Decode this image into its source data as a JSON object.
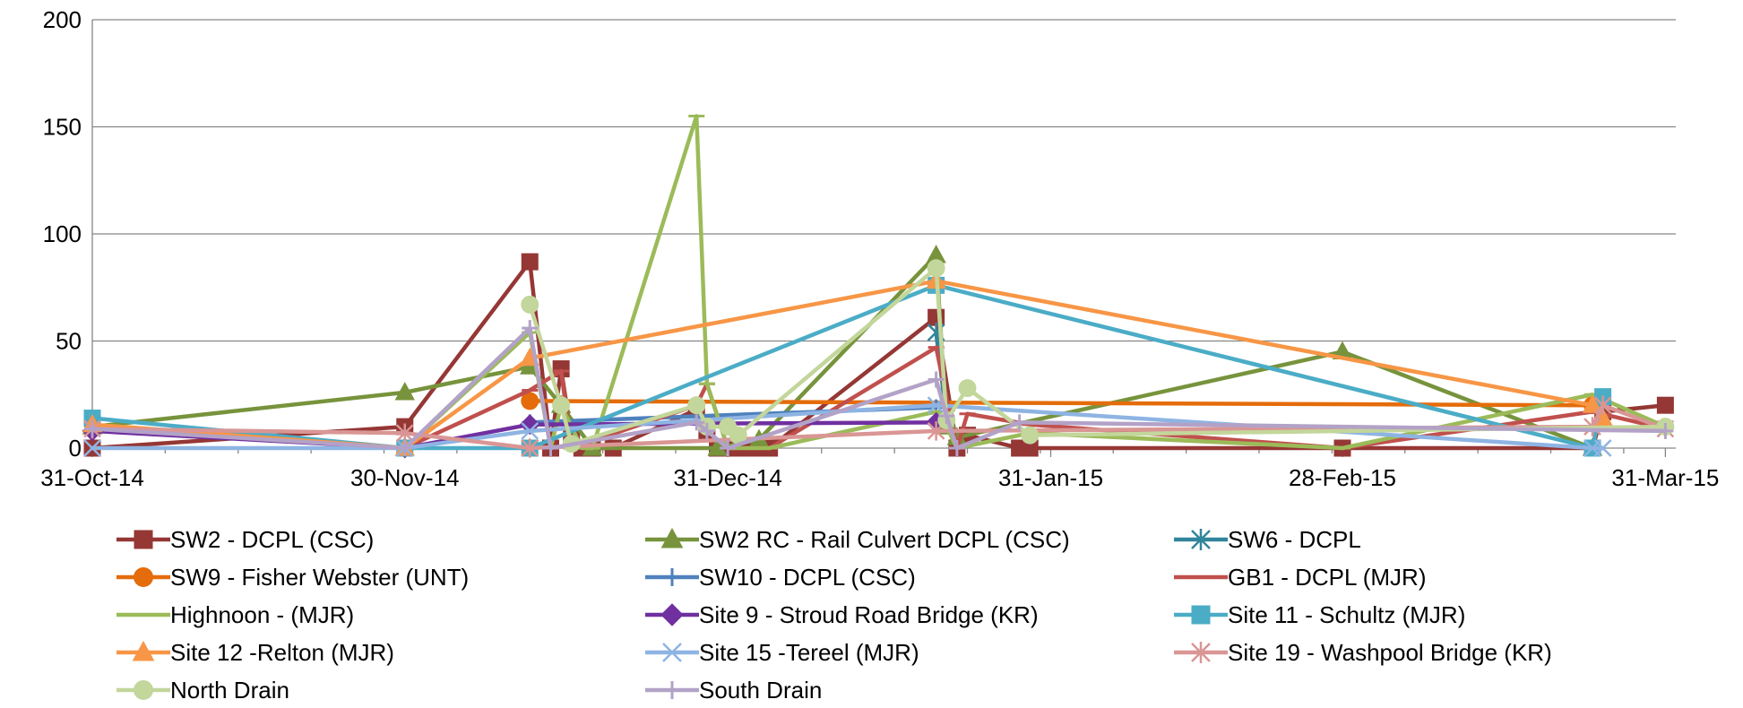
{
  "chart_data": {
    "type": "line",
    "title": "",
    "xlabel": "",
    "ylabel": "",
    "ylim": [
      0,
      200
    ],
    "yticks": [
      0,
      50,
      100,
      150,
      200
    ],
    "xlim": [
      "2014-10-31",
      "2015-04-01"
    ],
    "xticks": [
      {
        "date": "2014-10-31",
        "label": "31-Oct-14"
      },
      {
        "date": "2014-11-30",
        "label": "30-Nov-14"
      },
      {
        "date": "2014-12-31",
        "label": "31-Dec-14"
      },
      {
        "date": "2015-01-31",
        "label": "31-Jan-15"
      },
      {
        "date": "2015-02-28",
        "label": "28-Feb-15"
      },
      {
        "date": "2015-03-31",
        "label": "31-Mar-15"
      }
    ],
    "grid": "horizontal",
    "legend_position": "bottom",
    "series": [
      {
        "name": "SW2 - DCPL (CSC)",
        "color": "#953735",
        "marker": "square",
        "points": [
          [
            "2014-10-31",
            0
          ],
          [
            "2014-11-30",
            10
          ],
          [
            "2014-12-12",
            87
          ],
          [
            "2014-12-14",
            0
          ],
          [
            "2014-12-15",
            37
          ],
          [
            "2014-12-16",
            5
          ],
          [
            "2014-12-17",
            0
          ],
          [
            "2014-12-18",
            0
          ],
          [
            "2014-12-20",
            0
          ],
          [
            "2014-12-28",
            18
          ],
          [
            "2014-12-29",
            7
          ],
          [
            "2014-12-30",
            0
          ],
          [
            "2014-12-31",
            0
          ],
          [
            "2015-01-01",
            0
          ],
          [
            "2015-01-02",
            0
          ],
          [
            "2015-01-03",
            0
          ],
          [
            "2015-01-04",
            0
          ],
          [
            "2015-01-20",
            61
          ],
          [
            "2015-01-22",
            0
          ],
          [
            "2015-01-23",
            6
          ],
          [
            "2015-01-28",
            0
          ],
          [
            "2015-01-29",
            0
          ],
          [
            "2015-02-28",
            0
          ],
          [
            "2015-03-24",
            0
          ],
          [
            "2015-03-25",
            17
          ],
          [
            "2015-03-31",
            20
          ]
        ]
      },
      {
        "name": "SW2 RC - Rail Culvert DCPL (CSC)",
        "color": "#77933C",
        "marker": "triangle",
        "points": [
          [
            "2014-10-31",
            10
          ],
          [
            "2014-11-30",
            26
          ],
          [
            "2014-12-12",
            38
          ],
          [
            "2014-12-15",
            20
          ],
          [
            "2014-12-18",
            0
          ],
          [
            "2014-12-30",
            0
          ],
          [
            "2015-01-03",
            4
          ],
          [
            "2015-01-20",
            90
          ],
          [
            "2015-01-21",
            10
          ],
          [
            "2015-01-22",
            5
          ],
          [
            "2015-02-28",
            45
          ],
          [
            "2015-03-24",
            0
          ]
        ]
      },
      {
        "name": "SW6 - DCPL",
        "color": "#31859C",
        "marker": "star",
        "points": [
          [
            "2015-01-20",
            54
          ],
          [
            "2015-01-21",
            14
          ]
        ]
      },
      {
        "name": "SW9 - Fisher Webster (UNT)",
        "color": "#E46C0A",
        "marker": "circle",
        "points": [
          [
            "2014-12-12",
            22
          ],
          [
            "2015-03-24",
            20
          ]
        ]
      },
      {
        "name": "SW10 - DCPL (CSC)",
        "color": "#4F81BD",
        "marker": "plus",
        "points": [
          [
            "2014-12-12",
            12
          ],
          [
            "2015-01-20",
            19
          ]
        ]
      },
      {
        "name": "GB1 - DCPL (MJR)",
        "color": "#C0504D",
        "marker": "dash",
        "points": [
          [
            "2014-10-31",
            10
          ],
          [
            "2014-11-30",
            0
          ],
          [
            "2014-12-12",
            27
          ],
          [
            "2014-12-15",
            36
          ],
          [
            "2014-12-16",
            0
          ],
          [
            "2014-12-28",
            20
          ],
          [
            "2014-12-29",
            30
          ],
          [
            "2014-12-31",
            0
          ],
          [
            "2015-01-04",
            0
          ],
          [
            "2015-01-20",
            47
          ],
          [
            "2015-01-22",
            0
          ],
          [
            "2015-01-23",
            16
          ],
          [
            "2015-01-29",
            11
          ],
          [
            "2015-02-28",
            0
          ],
          [
            "2015-03-24",
            17
          ],
          [
            "2015-03-31",
            9
          ]
        ]
      },
      {
        "name": "Highnoon - (MJR)",
        "color": "#9BBB59",
        "marker": "dash",
        "points": [
          [
            "2014-10-31",
            10
          ],
          [
            "2014-11-30",
            0
          ],
          [
            "2014-12-12",
            54
          ],
          [
            "2014-12-14",
            0
          ],
          [
            "2014-12-15",
            20
          ],
          [
            "2014-12-17",
            0
          ],
          [
            "2014-12-18",
            0
          ],
          [
            "2014-12-28",
            155
          ],
          [
            "2014-12-29",
            30
          ],
          [
            "2014-12-31",
            0
          ],
          [
            "2015-01-04",
            0
          ],
          [
            "2015-01-20",
            17
          ],
          [
            "2015-01-21",
            10
          ],
          [
            "2015-01-22",
            0
          ],
          [
            "2015-01-29",
            7
          ],
          [
            "2015-02-28",
            0
          ],
          [
            "2015-03-24",
            25
          ],
          [
            "2015-03-31",
            10
          ]
        ]
      },
      {
        "name": "Site 9 - Stroud Road Bridge (KR)",
        "color": "#7030A0",
        "marker": "diamond",
        "points": [
          [
            "2014-10-31",
            8
          ],
          [
            "2014-11-30",
            0
          ],
          [
            "2014-12-12",
            11
          ],
          [
            "2015-01-20",
            12
          ]
        ]
      },
      {
        "name": "Site 11 - Schultz (MJR)",
        "color": "#4BACC6",
        "marker": "square",
        "points": [
          [
            "2014-10-31",
            14
          ],
          [
            "2014-11-30",
            0
          ],
          [
            "2014-12-12",
            0
          ],
          [
            "2015-01-20",
            76
          ],
          [
            "2015-03-24",
            0
          ],
          [
            "2015-03-25",
            24
          ]
        ]
      },
      {
        "name": "Site 12 -Relton (MJR)",
        "color": "#F79646",
        "marker": "triangle",
        "points": [
          [
            "2014-10-31",
            11
          ],
          [
            "2014-11-30",
            0
          ],
          [
            "2014-12-12",
            42
          ],
          [
            "2015-01-20",
            78
          ],
          [
            "2015-03-24",
            20
          ],
          [
            "2015-03-25",
            14
          ]
        ]
      },
      {
        "name": "Site 15 -Tereel (MJR)",
        "color": "#8EB4E3",
        "marker": "x",
        "points": [
          [
            "2014-10-31",
            0
          ],
          [
            "2014-11-30",
            0
          ],
          [
            "2014-12-12",
            8
          ],
          [
            "2015-01-20",
            20
          ],
          [
            "2015-03-24",
            0
          ],
          [
            "2015-03-25",
            0
          ]
        ]
      },
      {
        "name": "Site 19 - Washpool Bridge (KR)",
        "color": "#D99694",
        "marker": "star",
        "points": [
          [
            "2014-10-31",
            9
          ],
          [
            "2014-11-30",
            7
          ],
          [
            "2014-12-12",
            0
          ],
          [
            "2015-01-20",
            8
          ],
          [
            "2015-03-24",
            10
          ],
          [
            "2015-03-25",
            20
          ],
          [
            "2015-03-31",
            9
          ]
        ]
      },
      {
        "name": "North Drain",
        "color": "#C3D69B",
        "marker": "circle",
        "points": [
          [
            "2014-12-12",
            67
          ],
          [
            "2014-12-15",
            20
          ],
          [
            "2014-12-16",
            2
          ],
          [
            "2014-12-28",
            20
          ],
          [
            "2014-12-29",
            10
          ],
          [
            "2014-12-31",
            10
          ],
          [
            "2015-01-01",
            6
          ],
          [
            "2015-01-20",
            84
          ],
          [
            "2015-01-21",
            13
          ],
          [
            "2015-01-23",
            28
          ],
          [
            "2015-01-29",
            6
          ],
          [
            "2015-03-31",
            10
          ]
        ]
      },
      {
        "name": "South Drain",
        "color": "#B3A2C7",
        "marker": "plus",
        "points": [
          [
            "2014-10-31",
            9
          ],
          [
            "2014-11-30",
            0
          ],
          [
            "2014-12-12",
            56
          ],
          [
            "2014-12-14",
            0
          ],
          [
            "2014-12-28",
            12
          ],
          [
            "2014-12-29",
            8
          ],
          [
            "2014-12-31",
            0
          ],
          [
            "2015-01-20",
            32
          ],
          [
            "2015-01-21",
            15
          ],
          [
            "2015-01-22",
            0
          ],
          [
            "2015-01-28",
            12
          ],
          [
            "2015-03-31",
            8
          ]
        ]
      }
    ]
  }
}
